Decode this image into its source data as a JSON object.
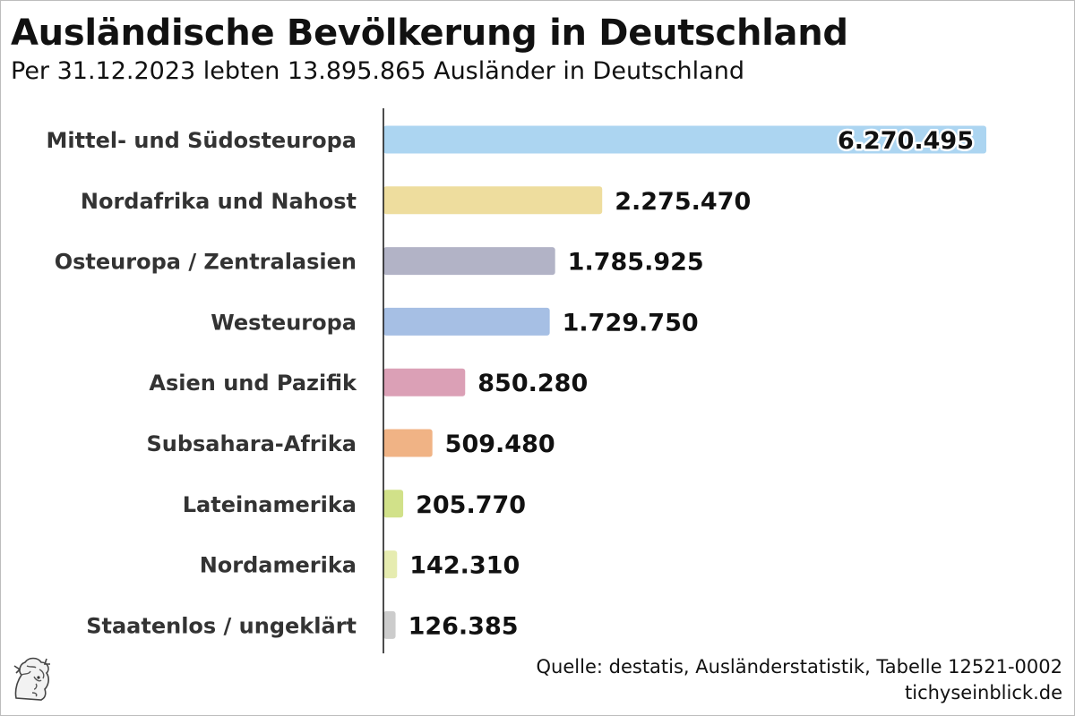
{
  "header": {
    "title": "Ausländische Bevölkerung in Deutschland",
    "subtitle": "Per 31.12.2023 lebten 13.895.865 Ausländer in Deutschland"
  },
  "footer": {
    "source": "Quelle: destatis, Ausländerstatistik, Tabelle 12521-0002",
    "site": "tichyseinblick.de",
    "logo_icon": "hermes-head-icon"
  },
  "chart_data": {
    "type": "bar",
    "orientation": "horizontal",
    "title": "Ausländische Bevölkerung in Deutschland",
    "subtitle": "Per 31.12.2023 lebten 13.895.865 Ausländer in Deutschland",
    "xlabel": "",
    "ylabel": "",
    "grid": false,
    "legend": "none",
    "xlim": [
      0,
      6270495
    ],
    "categories": [
      "Mittel- und Südosteuropa",
      "Nordafrika und Nahost",
      "Osteuropa / Zentralasien",
      "Westeuropa",
      "Asien und Pazifik",
      "Subsahara-Afrika",
      "Lateinamerika",
      "Nordamerika",
      "Staatenlos / ungeklärt"
    ],
    "values": [
      6270495,
      2275470,
      1785925,
      1729750,
      850280,
      509480,
      205770,
      142310,
      126385
    ],
    "value_labels": [
      "6.270.495",
      "2.275.470",
      "1.785.925",
      "1.729.750",
      "850.280",
      "509.480",
      "205.770",
      "142.310",
      "126.385"
    ],
    "colors": [
      "#acd5f1",
      "#eedd9e",
      "#b2b3c6",
      "#a6bfe4",
      "#dba0b6",
      "#f0b385",
      "#d1e189",
      "#e6ecb0",
      "#cccccc"
    ]
  }
}
